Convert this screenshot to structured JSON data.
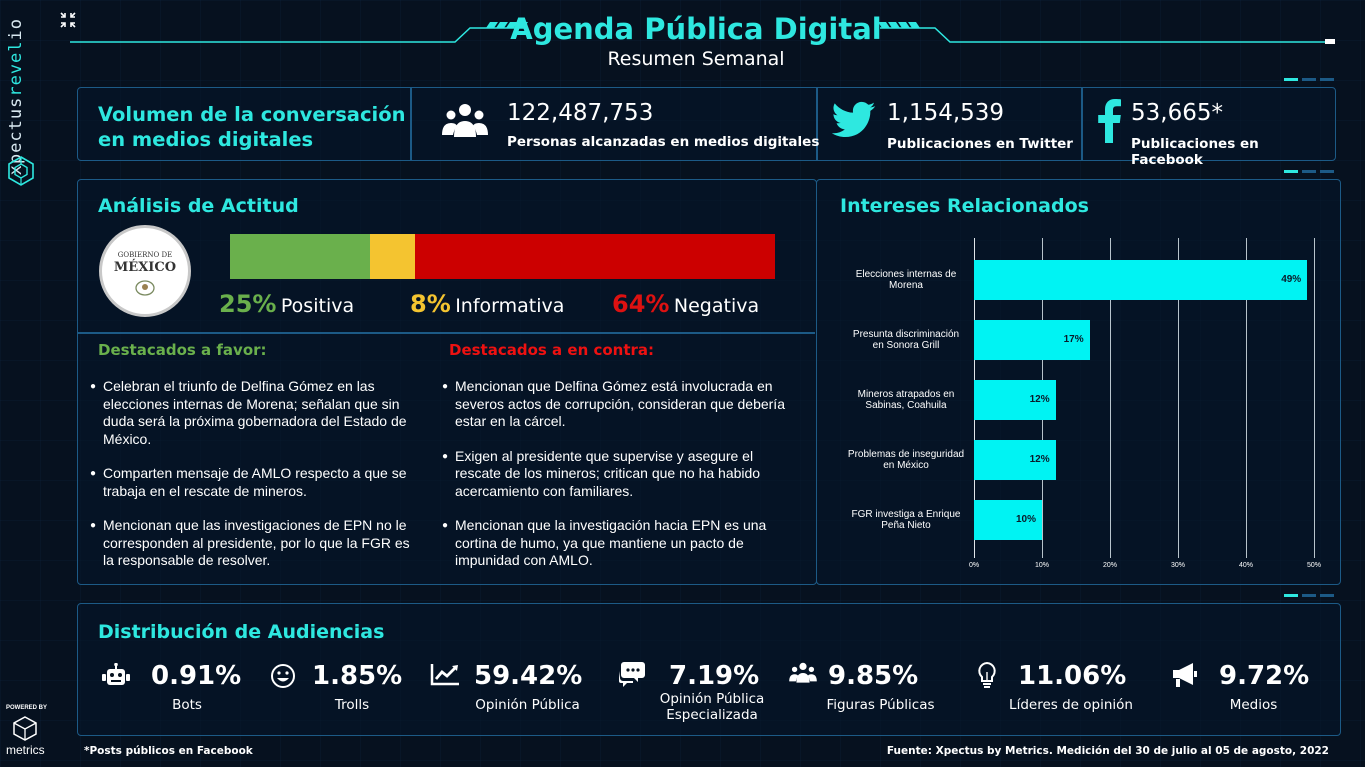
{
  "brand": {
    "name_part1": "xpectus",
    "name_part2": "revel",
    "name_part3": "io",
    "powered_by": "POWERED BY",
    "metrics": "metrics"
  },
  "header": {
    "title": "Agenda Pública Digital",
    "subtitle": "Resumen Semanal"
  },
  "volume": {
    "title_line1": "Volumen de la conversación",
    "title_line2": "en medios digitales",
    "reach": {
      "value": "122,487,753",
      "label": "Personas alcanzadas en medios digitales",
      "icon": "people-group-icon"
    },
    "twitter": {
      "value": "1,154,539",
      "label": "Publicaciones en Twitter",
      "icon": "twitter-bird-icon"
    },
    "facebook": {
      "value": "53,665*",
      "label": "Publicaciones en Facebook",
      "icon": "facebook-f-icon"
    }
  },
  "attitude": {
    "title": "Análisis de Actitud",
    "logo": {
      "line1": "GOBIERNO DE",
      "line2": "MÉXICO"
    },
    "positive": {
      "pct": "25%",
      "label": "Positiva",
      "value": 25,
      "color": "#6ab04c"
    },
    "informative": {
      "pct": "8%",
      "label": "Informativa",
      "value": 8,
      "color": "#f4c430"
    },
    "negative": {
      "pct": "64%",
      "label": "Negativa",
      "value": 64,
      "color": "#cc0000"
    }
  },
  "favor": {
    "title": "Destacados a favor:",
    "items": [
      "Celebran el triunfo de Delfina Gómez en las elecciones internas de Morena; señalan que sin duda será la próxima gobernadora del Estado de México.",
      "Comparten mensaje de AMLO respecto a que se trabaja en el rescate de mineros.",
      "Mencionan que las investigaciones de EPN no le corresponden al presidente, por lo que la FGR es la responsable de resolver."
    ]
  },
  "contra": {
    "title": "Destacados a en contra:",
    "items": [
      "Mencionan que Delfina Gómez está involucrada en severos actos de corrupción, consideran que debería estar en la cárcel.",
      "Exigen al presidente que supervise y asegure el rescate de los mineros; critican que no ha habido acercamiento con familiares.",
      "Mencionan que la investigación hacia EPN es una cortina de humo, ya que mantiene un pacto de impunidad con AMLO."
    ]
  },
  "interests": {
    "title": "Intereses Relacionados",
    "chart_data": {
      "type": "bar",
      "orientation": "horizontal",
      "categories": [
        [
          "Elecciones internas de",
          "Morena"
        ],
        [
          "Presunta discriminación",
          "en Sonora Grill"
        ],
        [
          "Mineros atrapados en",
          "Sabinas, Coahuila"
        ],
        [
          "Problemas de inseguridad",
          "en México"
        ],
        [
          "FGR investiga a Enrique",
          "Peña Nieto"
        ]
      ],
      "values": [
        49,
        17,
        12,
        12,
        10
      ],
      "value_labels": [
        "49%",
        "17%",
        "12%",
        "12%",
        "10%"
      ],
      "xlim": [
        0,
        50
      ],
      "ticks": [
        "0%",
        "10%",
        "20%",
        "30%",
        "40%",
        "50%"
      ],
      "grid": true,
      "color": "#00f3f3"
    }
  },
  "audience": {
    "title": "Distribución de Audiencias",
    "items": [
      {
        "value": "0.91%",
        "label": "Bots",
        "icon": "robot-icon"
      },
      {
        "value": "1.85%",
        "label": "Trolls",
        "icon": "smiley-face-icon"
      },
      {
        "value": "59.42%",
        "label": "Opinión Pública",
        "icon": "trend-chart-icon"
      },
      {
        "value": "7.19%",
        "label": "Opinión Pública Especializada",
        "icon": "chat-bubbles-icon"
      },
      {
        "value": "9.85%",
        "label": "Figuras Públicas",
        "icon": "people-group-icon"
      },
      {
        "value": "11.06%",
        "label": "Líderes de opinión",
        "icon": "lightbulb-icon"
      },
      {
        "value": "9.72%",
        "label": "Medios",
        "icon": "megaphone-icon"
      }
    ]
  },
  "footer": {
    "note": "*Posts públicos en Facebook",
    "source": "Fuente: Xpectus by Metrics. Medición del 30 de julio al 05 de agosto, 2022"
  }
}
